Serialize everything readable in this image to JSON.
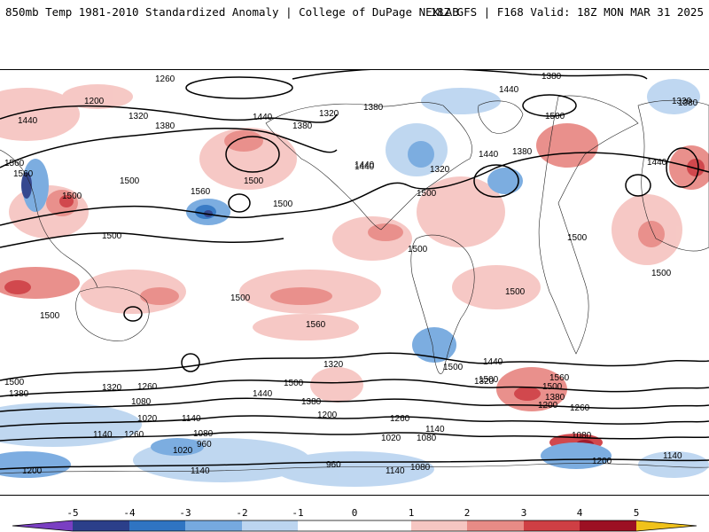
{
  "header": {
    "left": "850mb Temp 1981-2010 Standardized Anomaly | College of DuPage NEXLAB",
    "right": "18Z GFS | F168 Valid: 18Z MON MAR 31 2025"
  },
  "colors": {
    "neg5": "#7a3fc2",
    "neg4": "#2b3f8a",
    "neg3": "#2f74c2",
    "neg2": "#76a9df",
    "neg1": "#bcd5f0",
    "zero": "#ffffff",
    "pos1": "#f6c6c2",
    "pos2": "#e88b86",
    "pos3": "#cf3f44",
    "pos4": "#9c1023",
    "pos5": "#f0c21a"
  },
  "colorbar": {
    "ticks": [
      "-5",
      "-4",
      "-3",
      "-2",
      "-1",
      "0",
      "1",
      "2",
      "3",
      "4",
      "5"
    ]
  },
  "contour_labels": [
    "1320",
    "1260",
    "1200",
    "1440",
    "1380",
    "1380",
    "1320",
    "1440",
    "1380",
    "1320",
    "1440",
    "1380",
    "1320",
    "1380",
    "1440",
    "1500",
    "1320",
    "1560",
    "1560",
    "1500",
    "1500",
    "1560",
    "1500",
    "1500",
    "1440",
    "1440",
    "1380",
    "1500",
    "1440",
    "1500",
    "1500",
    "1500",
    "1500",
    "1500",
    "1500",
    "1560",
    "1500",
    "1500",
    "1500",
    "1320",
    "1440",
    "1380",
    "1500",
    "1440",
    "1560",
    "1500",
    "1380",
    "1200",
    "1260",
    "1320",
    "1500",
    "1380",
    "1320",
    "1260",
    "1080",
    "1020",
    "1140",
    "1260",
    "1200",
    "1140",
    "1260",
    "1140",
    "1080",
    "1020",
    "1080",
    "960",
    "1020",
    "960",
    "1140",
    "1200",
    "1140",
    "1080",
    "1080",
    "1200",
    "1140"
  ]
}
